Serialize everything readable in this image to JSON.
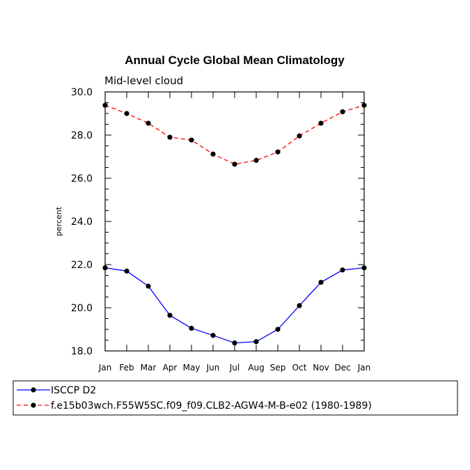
{
  "chart_data": {
    "type": "line",
    "title": "Annual Cycle Global Mean Climatology",
    "subtitle": "Mid-level cloud",
    "ylabel": "percent",
    "xlabel": "",
    "ylim": [
      18.0,
      30.0
    ],
    "yticks": [
      18.0,
      20.0,
      22.0,
      24.0,
      26.0,
      28.0,
      30.0
    ],
    "ytick_labels": [
      "18.0",
      "20.0",
      "22.0",
      "24.0",
      "26.0",
      "28.0",
      "30.0"
    ],
    "categories": [
      "Jan",
      "Feb",
      "Mar",
      "Apr",
      "May",
      "Jun",
      "Jul",
      "Aug",
      "Sep",
      "Oct",
      "Nov",
      "Dec",
      "Jan"
    ],
    "series": [
      {
        "name": "ISCCP D2",
        "color": "#0000ff",
        "dash": "solid",
        "values": [
          21.85,
          21.7,
          21.0,
          19.65,
          19.05,
          18.72,
          18.37,
          18.43,
          19.0,
          20.1,
          21.18,
          21.75,
          21.85
        ]
      },
      {
        "name": "f.e15b03wch.F55W5SC.f09_f09.CLB2-AGW4-M-B-e02 (1980-1989)",
        "color": "#ff0000",
        "dash": "dashed",
        "values": [
          29.38,
          29.0,
          28.55,
          27.9,
          27.77,
          27.12,
          26.65,
          26.83,
          27.22,
          27.96,
          28.55,
          29.08,
          29.38
        ]
      }
    ],
    "legend_position": "bottom",
    "grid": false
  }
}
